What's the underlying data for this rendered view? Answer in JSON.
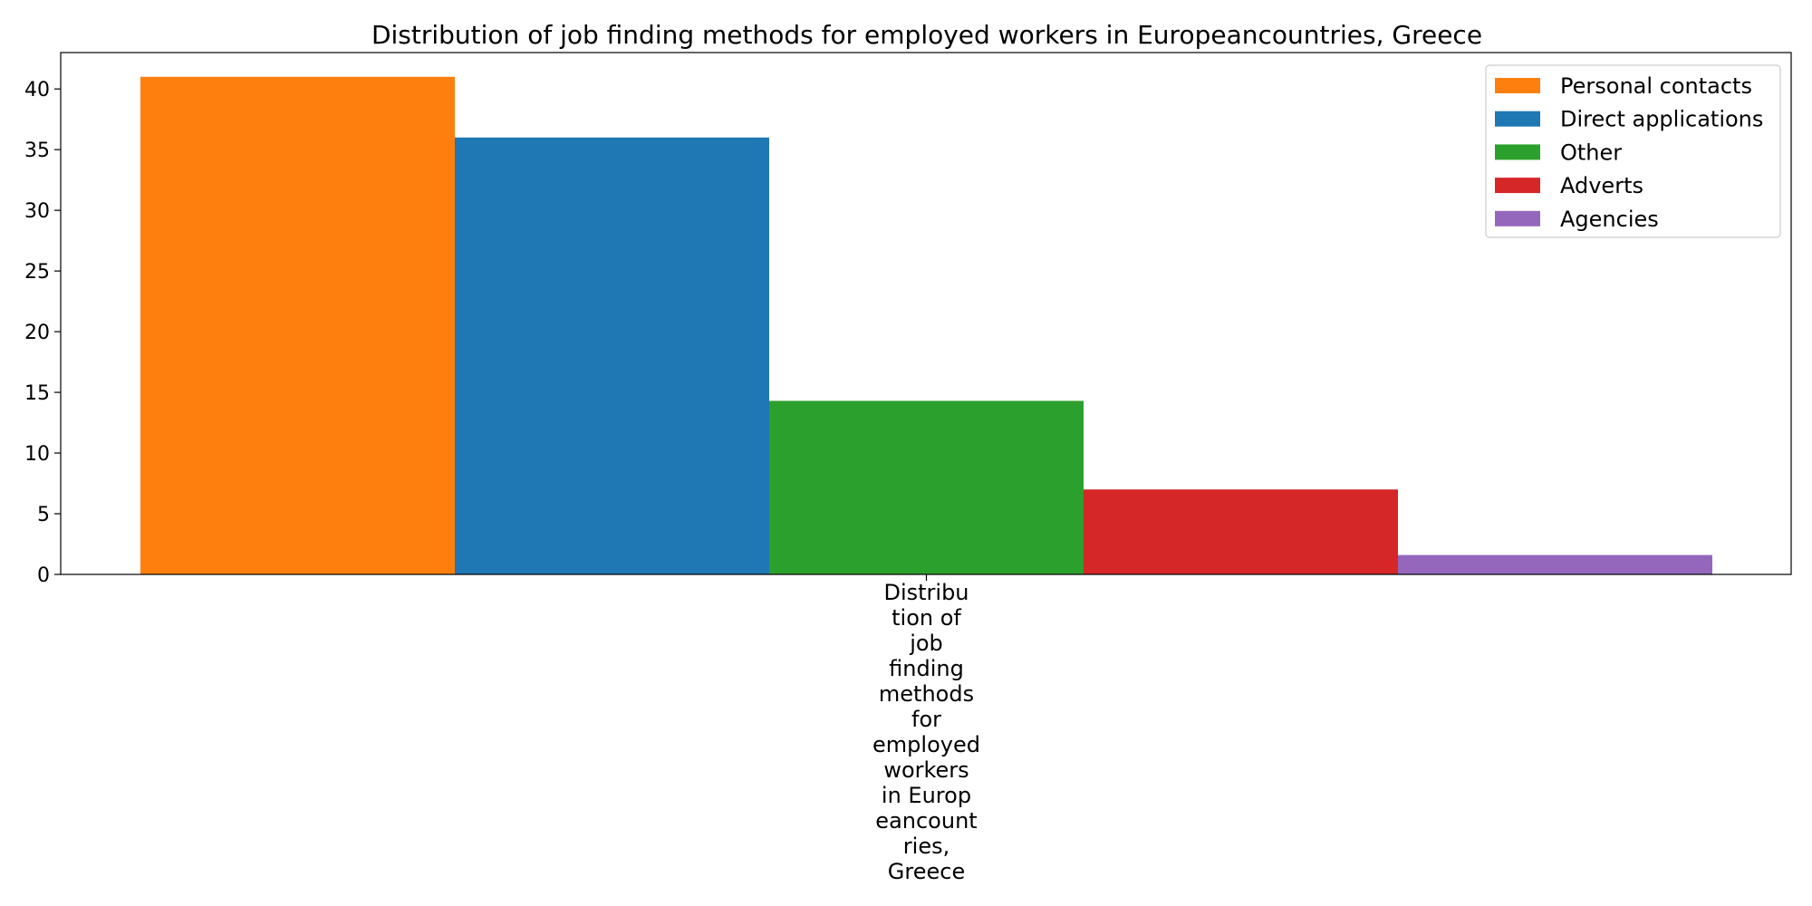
{
  "chart_data": {
    "type": "bar",
    "title": "Distribution of job finding methods for employed workers in Europeancountries, Greece",
    "xlabel": "",
    "ylabel": "",
    "categories": [
      "Distribution of job finding methods for employed workers in Europeancountries, Greece"
    ],
    "category_label_lines": [
      "Distribu",
      "tion of",
      "job",
      "finding",
      "methods",
      "for",
      "employed",
      "workers",
      "in Europ",
      "eancount",
      "ries,",
      "Greece"
    ],
    "series": [
      {
        "name": "Personal contacts",
        "values": [
          41.0
        ],
        "color": "#ff7f0e"
      },
      {
        "name": "Direct applications",
        "values": [
          36.0
        ],
        "color": "#1f77b4"
      },
      {
        "name": "Other",
        "values": [
          14.3
        ],
        "color": "#2ca02c"
      },
      {
        "name": "Adverts",
        "values": [
          7.0
        ],
        "color": "#d62728"
      },
      {
        "name": "Agencies",
        "values": [
          1.6
        ],
        "color": "#9467bd"
      }
    ],
    "ylim": [
      0,
      43
    ],
    "yticks": [
      0,
      5,
      10,
      15,
      20,
      25,
      30,
      35,
      40
    ],
    "grid": false,
    "legend_position": "top-right"
  }
}
